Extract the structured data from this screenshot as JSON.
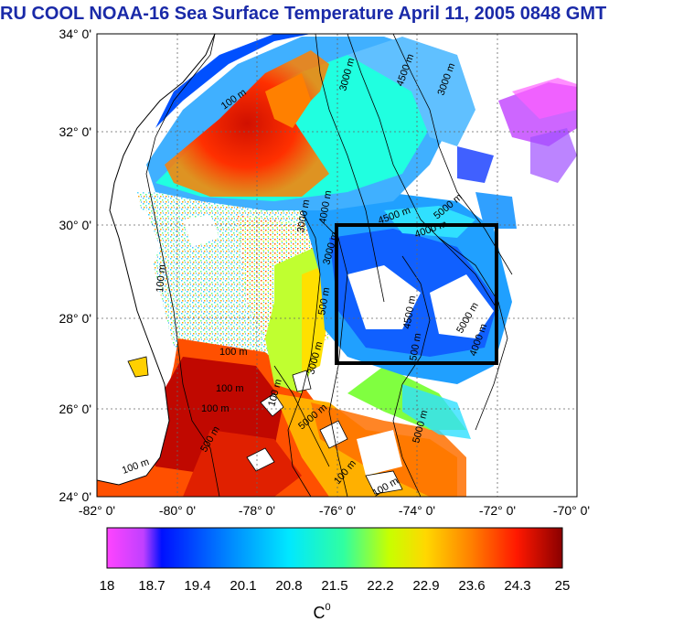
{
  "title": "RU COOL  NOAA-16 Sea Surface Temperature April 11, 2005 0848 GMT",
  "map": {
    "lat_range": [
      24,
      34
    ],
    "lon_range": [
      -82,
      -70
    ],
    "lat_ticks": [
      "34° 0'",
      "32° 0'",
      "30° 0'",
      "28° 0'",
      "26° 0'",
      "24° 0'"
    ],
    "lon_ticks": [
      "-82° 0'",
      "-80° 0'",
      "-78° 0'",
      "-76° 0'",
      "-74° 0'",
      "-72° 0'",
      "-70° 0'"
    ],
    "study_box": {
      "lon_min": -76,
      "lon_max": -72,
      "lat_min": 27,
      "lat_max": 30
    },
    "contour_labels": [
      "100 m",
      "3000 m",
      "4500 m",
      "3000 m",
      "3000 m",
      "4000 m",
      "4500 m",
      "5000 m",
      "4000 m",
      "3000 m",
      "100 m",
      "100 m",
      "100 m",
      "100 m",
      "100 m",
      "500 m",
      "4500 m",
      "5000 m",
      "5000 m",
      "3000 m",
      "500 m",
      "100 m",
      "5000 m",
      "100 m",
      "4000 m",
      "100 m",
      "500 m"
    ]
  },
  "colorbar": {
    "labels": [
      "18",
      "18.7",
      "19.4",
      "20.1",
      "20.8",
      "21.5",
      "22.2",
      "22.9",
      "23.6",
      "24.3",
      "25"
    ],
    "unit": "C",
    "unit_superscript": "0",
    "colors": [
      "#ff44ff",
      "#c040ff",
      "#0010ff",
      "#0070ff",
      "#00c8ff",
      "#00f0d0",
      "#40ff60",
      "#c8ff00",
      "#ffd800",
      "#ff8000",
      "#ff2000",
      "#a00000"
    ]
  }
}
